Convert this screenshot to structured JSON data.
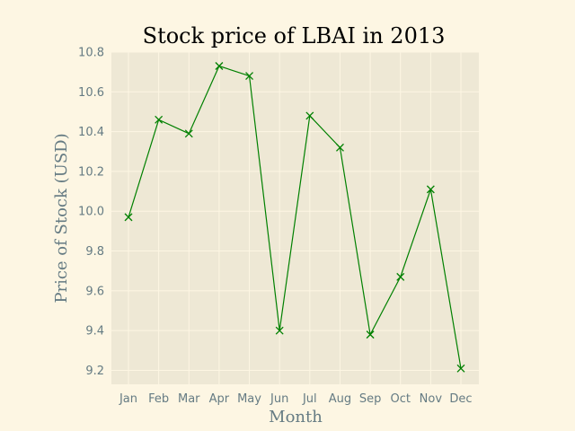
{
  "chart_data": {
    "type": "line",
    "title": "Stock price of LBAI in 2013",
    "xlabel": "Month",
    "ylabel": "Price of Stock (USD)",
    "categories": [
      "Jan",
      "Feb",
      "Mar",
      "Apr",
      "May",
      "Jun",
      "Jul",
      "Aug",
      "Sep",
      "Oct",
      "Nov",
      "Dec"
    ],
    "series": [
      {
        "values": [
          9.97,
          10.46,
          10.39,
          10.73,
          10.68,
          9.4,
          10.48,
          10.32,
          9.38,
          9.67,
          10.11,
          9.21
        ],
        "color": "#008000",
        "marker": "x"
      }
    ],
    "ylim": [
      9.13,
      10.8
    ],
    "yticks": [
      "9.2",
      "9.4",
      "9.6",
      "9.8",
      "10.0",
      "10.2",
      "10.4",
      "10.6",
      "10.8"
    ],
    "grid": true,
    "colors": {
      "figure_background": "#fdf6e3",
      "plot_background": "#eee8d5",
      "grid": "#fdf6e3",
      "text": "#657b83"
    }
  }
}
